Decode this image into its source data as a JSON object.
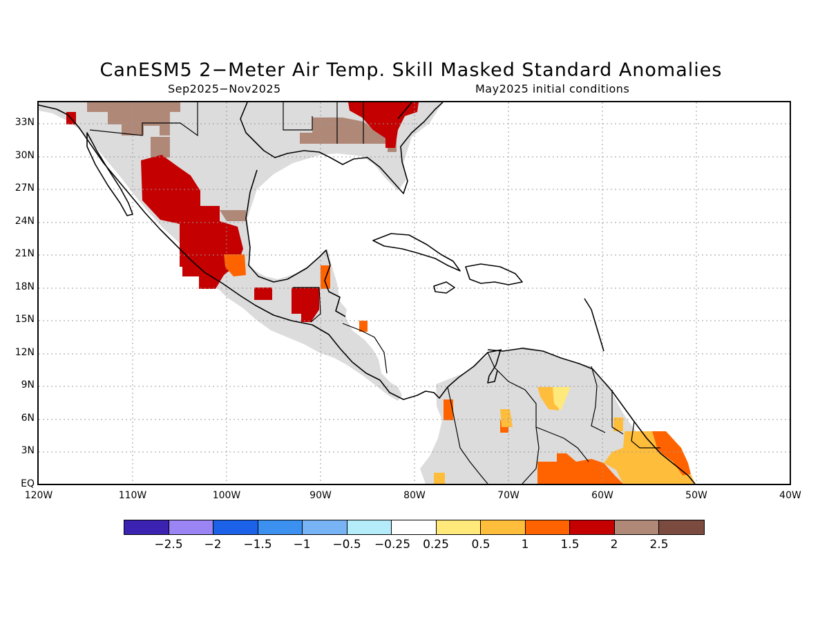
{
  "title": "CanESM5 2−Meter Air Temp. Skill Masked Standard Anomalies",
  "subtitle_left": "Sep2025−Nov2025",
  "subtitle_right": "May2025 initial conditions",
  "lat_labels": [
    "33N",
    "30N",
    "27N",
    "24N",
    "21N",
    "18N",
    "15N",
    "12N",
    "9N",
    "6N",
    "3N",
    "EQ"
  ],
  "lon_labels": [
    "120W",
    "110W",
    "100W",
    "90W",
    "80W",
    "70W",
    "60W",
    "50W",
    "40W"
  ],
  "colorbar": {
    "colors": [
      "#3b22b0",
      "#9b85f5",
      "#1c62e8",
      "#3c90f0",
      "#78b4f5",
      "#b4ecfa",
      "#ffffff",
      "#ffe97a",
      "#ffbd3c",
      "#ff6300",
      "#c40000",
      "#b08878",
      "#7b4b40"
    ],
    "labels": [
      "−2.5",
      "−2",
      "−1.5",
      "−1",
      "−0.5",
      "−0.25",
      "0.25",
      "0.5",
      "1",
      "1.5",
      "2",
      "2.5"
    ]
  },
  "colors": {
    "land_no_signal": "#dcdcdc",
    "coast": "#000000",
    "grid": "#999999"
  }
}
